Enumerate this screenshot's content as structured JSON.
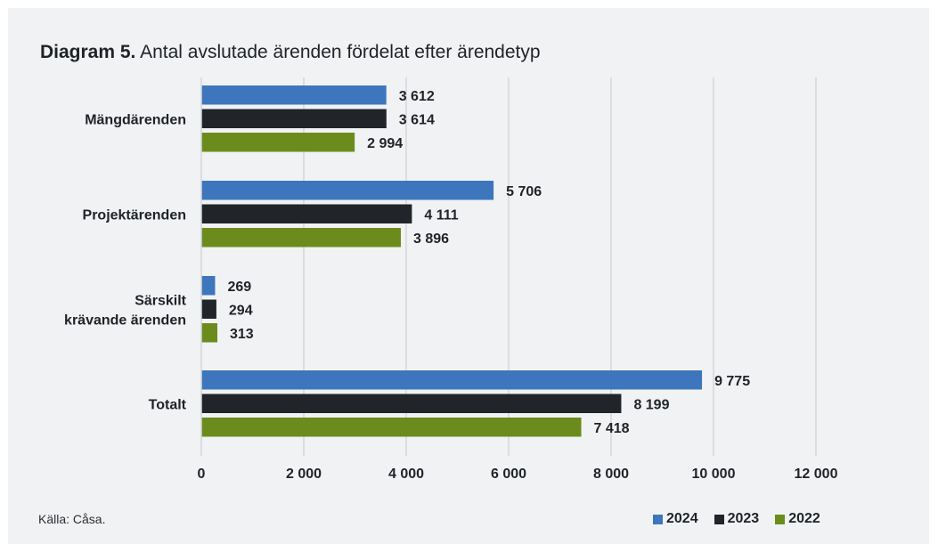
{
  "title_bold": "Diagram 5.",
  "title_rest": "Antal avslutade ärenden fördelat efter ärendetyp",
  "source": "Källa: Cåsa.",
  "colors": {
    "2024": "#3d76bd",
    "2023": "#212529",
    "2022": "#6b8c1d",
    "grid": "#d4d6d9",
    "background": "#f1f2f4"
  },
  "chart_data": {
    "type": "bar",
    "orientation": "horizontal",
    "categories": [
      "Mängdärenden",
      "Projektärenden",
      "Särskilt krävande ärenden",
      "Totalt"
    ],
    "category_lines": [
      [
        "Mängdärenden"
      ],
      [
        "Projektärenden"
      ],
      [
        "Särskilt",
        "krävande ärenden"
      ],
      [
        "Totalt"
      ]
    ],
    "series": [
      {
        "name": "2024",
        "values": [
          3612,
          5706,
          269,
          9775
        ],
        "labels": [
          "3 612",
          "5 706",
          "269",
          "9 775"
        ]
      },
      {
        "name": "2023",
        "values": [
          3614,
          4111,
          294,
          8199
        ],
        "labels": [
          "3 614",
          "4 111",
          "294",
          "8 199"
        ]
      },
      {
        "name": "2022",
        "values": [
          2994,
          3896,
          313,
          7418
        ],
        "labels": [
          "2 994",
          "3 896",
          "313",
          "7 418"
        ]
      }
    ],
    "xlim": [
      0,
      12000
    ],
    "xticks": [
      0,
      2000,
      4000,
      6000,
      8000,
      10000,
      12000
    ],
    "xtick_labels": [
      "0",
      "2 000",
      "4 000",
      "6 000",
      "8 000",
      "10 000",
      "12 000"
    ],
    "grid": true,
    "legend_position": "bottom-right"
  }
}
